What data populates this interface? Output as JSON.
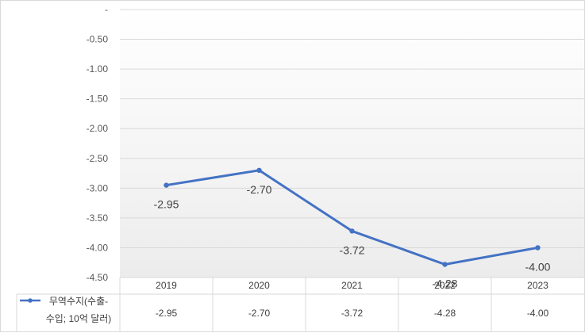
{
  "chart_data": {
    "type": "line",
    "categories": [
      "2019",
      "2020",
      "2021",
      "2022",
      "2023"
    ],
    "series": [
      {
        "name": "무역수지(수출-수입; 10억 달러)",
        "name_lines": [
          "무역수지(수출-",
          "수입; 10억 달러)"
        ],
        "values": [
          -2.95,
          -2.7,
          -3.72,
          -4.28,
          -4.0
        ],
        "labels": [
          "-2.95",
          "-2.70",
          "-3.72",
          "-4.28",
          "-4.00"
        ],
        "color": "#4472c4"
      }
    ],
    "yticks": [
      "-",
      "-0.50",
      "-1.00",
      "-1.50",
      "-2.00",
      "-2.50",
      "-3.00",
      "-3.50",
      "-4.00",
      "-4.50"
    ],
    "ylim": [
      -4.5,
      0
    ],
    "grid": true,
    "legend": "data-table-left",
    "plot_background": "gradient-white-to-light-gray",
    "gridline_color": "#d9d9d9"
  }
}
